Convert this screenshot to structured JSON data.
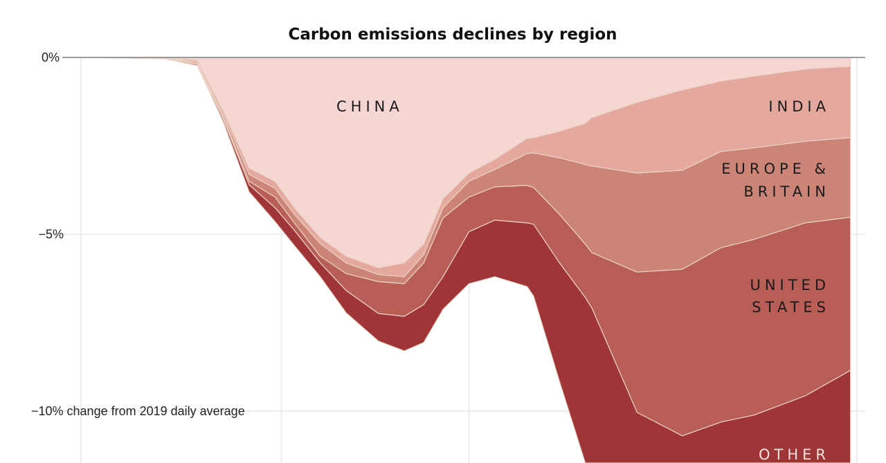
{
  "chart_data": {
    "type": "area",
    "stacked": true,
    "title": "Carbon emissions declines by region",
    "ylabel": "change from 2019 daily average",
    "y_ticks": [
      {
        "value": 0,
        "label": "0%"
      },
      {
        "value": -5,
        "label": "−5%"
      },
      {
        "value": -10,
        "label": "−10% change from 2019 daily average"
      }
    ],
    "ylim": [
      -11.5,
      0
    ],
    "xlim": [
      "2020-01-01",
      "2020-04-30"
    ],
    "x_gridlines": [
      "2020-01-01",
      "2020-02-01",
      "2020-03-01",
      "2020-04-30"
    ],
    "grid": true,
    "x": [
      "2020-01-01",
      "2020-01-14",
      "2020-01-19",
      "2020-01-23",
      "2020-01-27",
      "2020-01-31",
      "2020-02-03",
      "2020-02-07",
      "2020-02-11",
      "2020-02-16",
      "2020-02-20",
      "2020-02-23",
      "2020-02-26",
      "2020-03-01",
      "2020-03-05",
      "2020-03-10",
      "2020-03-11",
      "2020-03-15",
      "2020-03-19",
      "2020-03-20",
      "2020-03-27",
      "2020-04-03",
      "2020-04-09",
      "2020-04-14",
      "2020-04-22",
      "2020-04-29"
    ],
    "series": [
      {
        "name": "CHINA",
        "color": "#f5d6d3",
        "values": [
          0,
          0,
          -0.08,
          -1.51,
          -3.13,
          -3.5,
          -4.25,
          -5.09,
          -5.62,
          -5.95,
          -5.81,
          -5.28,
          -3.99,
          -3.27,
          -2.88,
          -2.29,
          -2.27,
          -2.09,
          -1.86,
          -1.7,
          -1.27,
          -0.92,
          -0.67,
          -0.53,
          -0.33,
          -0.25
        ]
      },
      {
        "name": "INDIA",
        "color": "#e4a89f",
        "values": [
          0,
          0,
          -0.06,
          -0.11,
          -0.18,
          -0.2,
          -0.19,
          -0.17,
          -0.19,
          -0.19,
          -0.39,
          -0.3,
          -0.26,
          -0.23,
          -0.29,
          -0.43,
          -0.43,
          -0.75,
          -1.17,
          -1.37,
          -2.0,
          -2.27,
          -1.99,
          -2.03,
          -2.04,
          -2.02
        ]
      },
      {
        "name": "EUROPE & BRITAIN",
        "color": "#cc8477",
        "values": [
          0,
          0,
          -0.04,
          -0.08,
          -0.19,
          -0.25,
          -0.24,
          -0.36,
          -0.3,
          -0.2,
          -0.2,
          -0.23,
          -0.29,
          -0.45,
          -0.49,
          -0.9,
          -0.98,
          -1.6,
          -2.25,
          -2.45,
          -2.8,
          -2.8,
          -2.72,
          -2.59,
          -2.31,
          -2.25
        ]
      },
      {
        "name": "UNITED STATES",
        "color": "#b95e56",
        "values": [
          0,
          -0.02,
          -0.02,
          -0.04,
          -0.1,
          -0.3,
          -0.21,
          -0.19,
          -0.48,
          -0.9,
          -0.92,
          -1.18,
          -1.66,
          -0.98,
          -0.94,
          -1.06,
          -1.04,
          -1.37,
          -1.51,
          -1.56,
          -3.97,
          -4.71,
          -4.93,
          -4.97,
          -4.89,
          -4.33
        ]
      },
      {
        "name": "OTHER",
        "color": "#a03537",
        "values": [
          0,
          -0.02,
          -0.03,
          -0.08,
          -0.2,
          -0.39,
          -0.43,
          -0.39,
          -0.63,
          -0.78,
          -0.98,
          -1.07,
          -0.92,
          -1.47,
          -1.6,
          -1.8,
          -2.03,
          -3.35,
          -4.89,
          -5.39,
          -2.82,
          -2.25,
          -2.64,
          -2.83,
          -3.38,
          -4.1
        ]
      }
    ],
    "labels": {
      "china": "CHINA",
      "india": "INDIA",
      "europe_1": "EUROPE &",
      "europe_2": "BRITAIN",
      "us_1": "UNITED",
      "us_2": "STATES",
      "other": "OTHER"
    }
  }
}
